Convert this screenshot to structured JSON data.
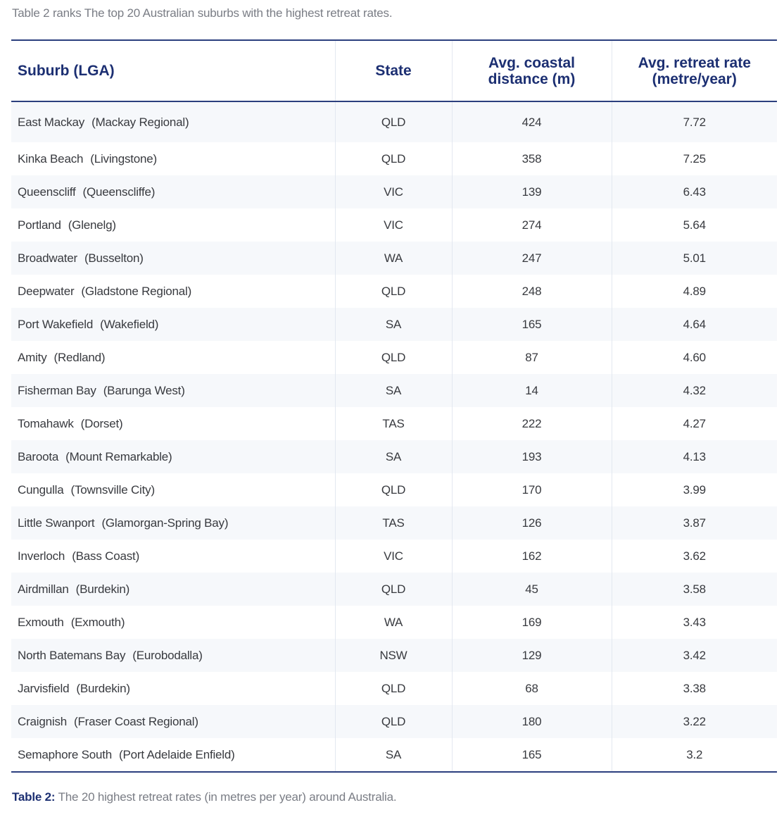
{
  "intro_text": "Table 2 ranks The top 20 Australian suburbs with the highest retreat rates.",
  "table": {
    "headers": [
      "Suburb (LGA)",
      "State",
      "Avg. coastal distance (m)",
      "Avg. retreat rate (metre/year)"
    ],
    "rows": [
      {
        "suburb": "East Mackay",
        "lga": "(Mackay Regional)",
        "state": "QLD",
        "distance": "424",
        "rate": "7.72"
      },
      {
        "suburb": "Kinka Beach",
        "lga": "(Livingstone)",
        "state": "QLD",
        "distance": "358",
        "rate": "7.25"
      },
      {
        "suburb": "Queenscliff",
        "lga": "(Queenscliffe)",
        "state": "VIC",
        "distance": "139",
        "rate": "6.43"
      },
      {
        "suburb": "Portland",
        "lga": "(Glenelg)",
        "state": "VIC",
        "distance": "274",
        "rate": "5.64"
      },
      {
        "suburb": "Broadwater",
        "lga": "(Busselton)",
        "state": "WA",
        "distance": "247",
        "rate": "5.01"
      },
      {
        "suburb": "Deepwater",
        "lga": "(Gladstone Regional)",
        "state": "QLD",
        "distance": "248",
        "rate": "4.89"
      },
      {
        "suburb": "Port Wakefield",
        "lga": "(Wakefield)",
        "state": "SA",
        "distance": "165",
        "rate": "4.64"
      },
      {
        "suburb": "Amity",
        "lga": "(Redland)",
        "state": "QLD",
        "distance": "87",
        "rate": "4.60"
      },
      {
        "suburb": "Fisherman Bay",
        "lga": "(Barunga West)",
        "state": "SA",
        "distance": "14",
        "rate": "4.32"
      },
      {
        "suburb": "Tomahawk",
        "lga": "(Dorset)",
        "state": "TAS",
        "distance": "222",
        "rate": "4.27"
      },
      {
        "suburb": "Baroota",
        "lga": "(Mount Remarkable)",
        "state": "SA",
        "distance": "193",
        "rate": "4.13"
      },
      {
        "suburb": "Cungulla",
        "lga": "(Townsville City)",
        "state": "QLD",
        "distance": "170",
        "rate": "3.99"
      },
      {
        "suburb": "Little Swanport",
        "lga": "(Glamorgan-Spring Bay)",
        "state": "TAS",
        "distance": "126",
        "rate": "3.87"
      },
      {
        "suburb": "Inverloch",
        "lga": "(Bass Coast)",
        "state": "VIC",
        "distance": "162",
        "rate": "3.62"
      },
      {
        "suburb": "Airdmillan",
        "lga": "(Burdekin)",
        "state": "QLD",
        "distance": "45",
        "rate": "3.58"
      },
      {
        "suburb": "Exmouth",
        "lga": "(Exmouth)",
        "state": "WA",
        "distance": "169",
        "rate": "3.43"
      },
      {
        "suburb": "North Batemans Bay",
        "lga": "(Eurobodalla)",
        "state": "NSW",
        "distance": "129",
        "rate": "3.42"
      },
      {
        "suburb": "Jarvisfield",
        "lga": "(Burdekin)",
        "state": "QLD",
        "distance": "68",
        "rate": "3.38"
      },
      {
        "suburb": "Craignish",
        "lga": "(Fraser Coast Regional)",
        "state": "QLD",
        "distance": "180",
        "rate": "3.22"
      },
      {
        "suburb": "Semaphore South",
        "lga": "(Port Adelaide Enfield)",
        "state": "SA",
        "distance": "165",
        "rate": "3.2"
      }
    ]
  },
  "caption": {
    "label": "Table 2:",
    "text": " The 20 highest retreat rates (in metres per year) around Australia."
  },
  "colors": {
    "header_text": "#1c2f72",
    "rule": "#2b3f7e",
    "stripe": "#f6f8fb"
  }
}
